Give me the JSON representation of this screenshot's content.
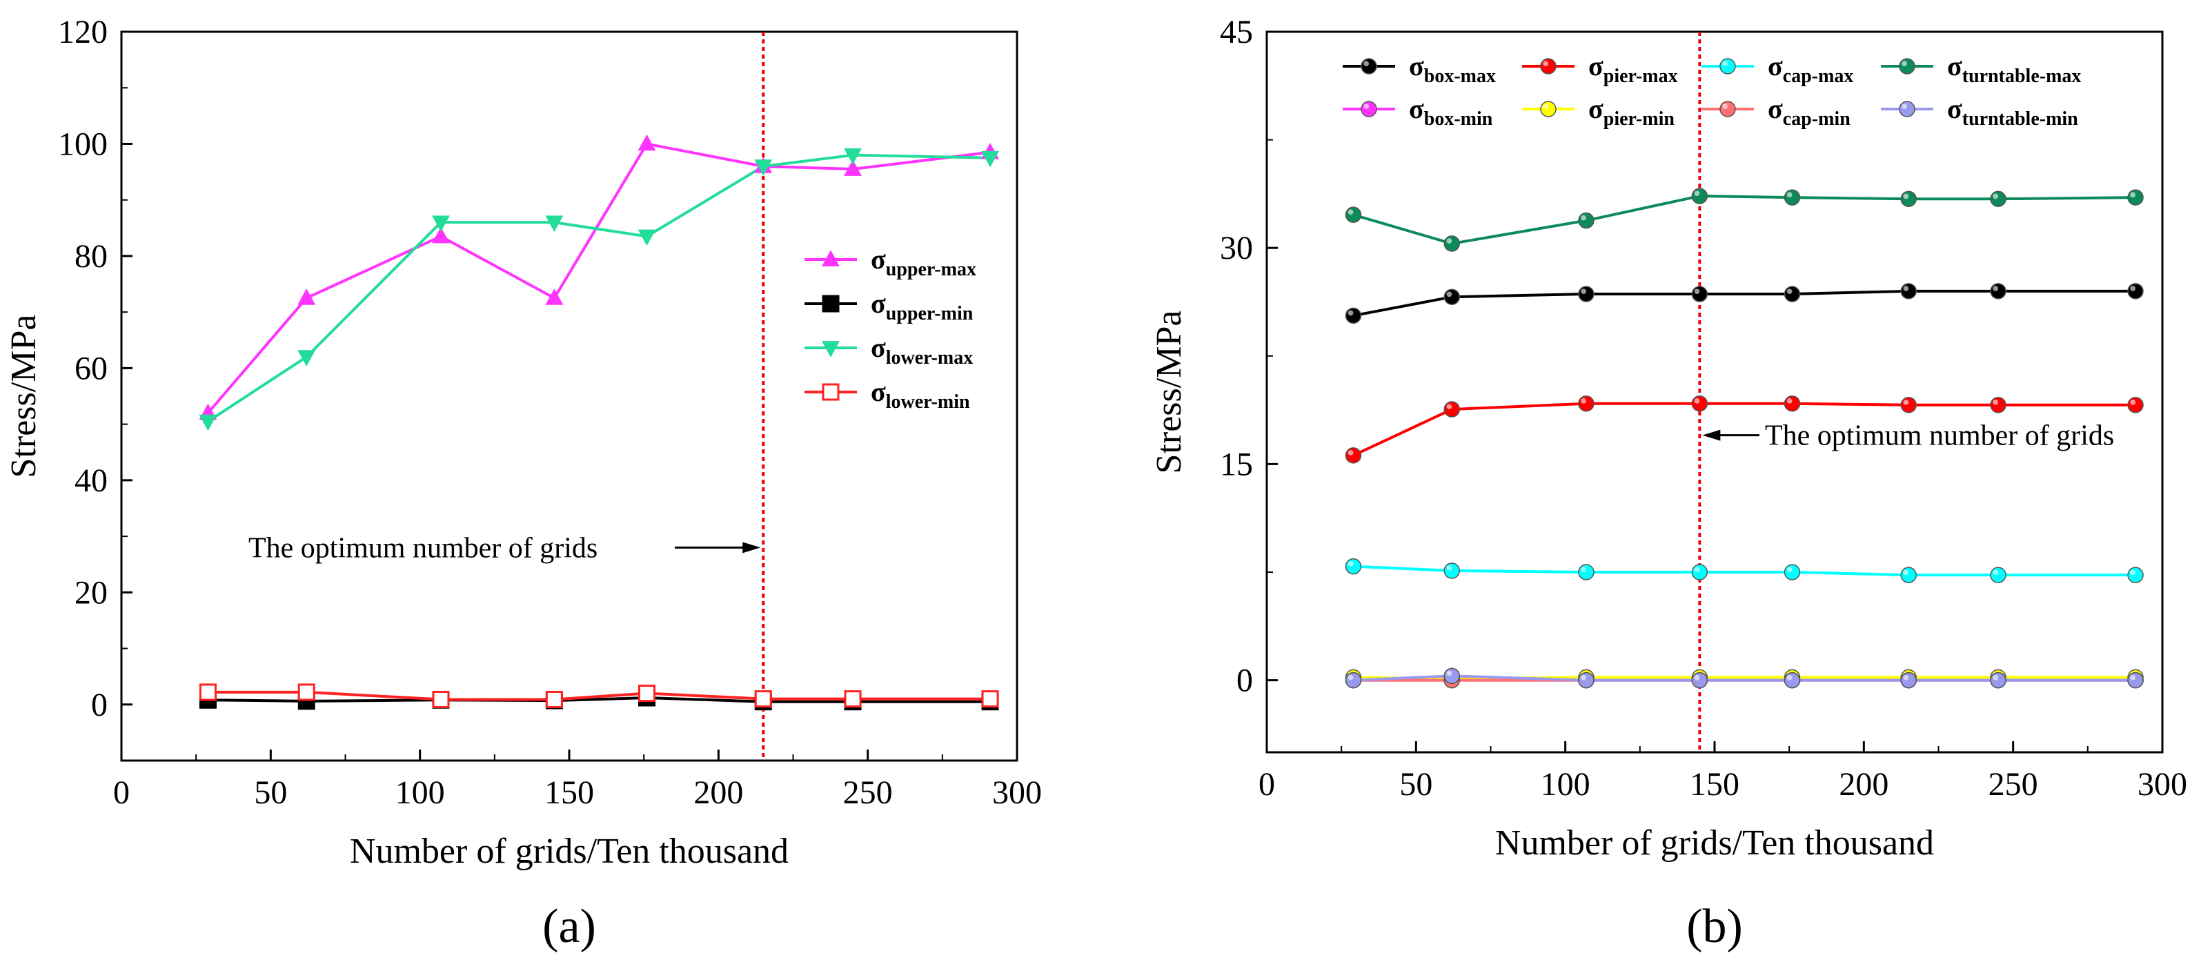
{
  "chart_data": [
    {
      "type": "line",
      "panel_label": "(a)",
      "xlabel": "Number of grids/Ten thousand",
      "ylabel": "Stress/MPa",
      "xlim": [
        0,
        300
      ],
      "ylim": [
        -10,
        120
      ],
      "xticks": [
        0,
        50,
        100,
        150,
        200,
        250,
        300
      ],
      "yticks": [
        0,
        20,
        40,
        60,
        80,
        100,
        120
      ],
      "grid": false,
      "legend_position": "right",
      "annotation": {
        "text": "The optimum number of grids",
        "line_x": 215
      },
      "x": [
        29,
        62,
        107,
        145,
        176,
        215,
        245,
        291
      ],
      "series": [
        {
          "name": "σupper-max",
          "name_main": "σ",
          "name_sub": "upper-max",
          "color": "#ff33ff",
          "marker": "triangle-up",
          "filled": true,
          "values": [
            52,
            72.5,
            83.5,
            72.5,
            100,
            96,
            95.5,
            98.5
          ]
        },
        {
          "name": "σupper-min",
          "name_main": "σ",
          "name_sub": "upper-min",
          "color": "#000000",
          "marker": "square",
          "filled": true,
          "values": [
            0.8,
            0.6,
            0.8,
            0.7,
            1.2,
            0.5,
            0.5,
            0.5
          ]
        },
        {
          "name": "σlower-max",
          "name_main": "σ",
          "name_sub": "lower-max",
          "color": "#22dd99",
          "marker": "triangle-down",
          "filled": true,
          "values": [
            50.5,
            62,
            86,
            86,
            83.5,
            96,
            98,
            97.5
          ]
        },
        {
          "name": "σlower-min",
          "name_main": "σ",
          "name_sub": "lower-min",
          "color": "#ff2222",
          "marker": "square",
          "filled": false,
          "values": [
            2.2,
            2.2,
            0.9,
            0.9,
            2.0,
            1.0,
            1.0,
            1.0
          ]
        }
      ]
    },
    {
      "type": "line",
      "panel_label": "(b)",
      "xlabel": "Number of grids/Ten thousand",
      "ylabel": "Stress/MPa",
      "xlim": [
        0,
        300
      ],
      "ylim": [
        -5,
        45
      ],
      "xticks": [
        0,
        50,
        100,
        150,
        200,
        250,
        300
      ],
      "yticks": [
        0,
        15,
        30,
        45
      ],
      "grid": false,
      "legend_position": "top",
      "annotation": {
        "text": "The optimum number of grids",
        "line_x": 145
      },
      "x": [
        29,
        62,
        107,
        145,
        176,
        215,
        245,
        291
      ],
      "series": [
        {
          "name": "σbox-max",
          "name_main": "σ",
          "name_sub": "box-max",
          "color": "#000000",
          "marker": "circle",
          "values": [
            25.3,
            26.6,
            26.8,
            26.8,
            26.8,
            27.0,
            27.0,
            27.0
          ]
        },
        {
          "name": "σpier-max",
          "name_main": "σ",
          "name_sub": "pier-max",
          "color": "#ff0000",
          "marker": "circle",
          "values": [
            15.6,
            18.8,
            19.2,
            19.2,
            19.2,
            19.1,
            19.1,
            19.1
          ]
        },
        {
          "name": "σcap-max",
          "name_main": "σ",
          "name_sub": "cap-max",
          "color": "#00ffff",
          "marker": "circle",
          "values": [
            7.9,
            7.6,
            7.5,
            7.5,
            7.5,
            7.3,
            7.3,
            7.3
          ]
        },
        {
          "name": "σturntable-max",
          "name_main": "σ",
          "name_sub": "turntable-max",
          "color": "#0d8a5a",
          "marker": "circle",
          "values": [
            32.3,
            30.3,
            31.9,
            33.6,
            33.5,
            33.4,
            33.4,
            33.5
          ]
        },
        {
          "name": "σbox-min",
          "name_main": "σ",
          "name_sub": "box-min",
          "color": "#ff33ff",
          "marker": "circle",
          "values": [
            0.0,
            0.0,
            0.0,
            0.0,
            0.0,
            0.0,
            0.0,
            0.0
          ]
        },
        {
          "name": "σpier-min",
          "name_main": "σ",
          "name_sub": "pier-min",
          "color": "#ffff00",
          "marker": "circle",
          "values": [
            0.2,
            0.1,
            0.2,
            0.2,
            0.2,
            0.2,
            0.2,
            0.2
          ]
        },
        {
          "name": "σcap-min",
          "name_main": "σ",
          "name_sub": "cap-min",
          "color": "#ff7070",
          "marker": "circle",
          "values": [
            0.0,
            0.0,
            0.0,
            0.0,
            0.0,
            0.0,
            0.0,
            0.0
          ]
        },
        {
          "name": "σturntable-min",
          "name_main": "σ",
          "name_sub": "turntable-min",
          "color": "#9999ee",
          "marker": "circle",
          "values": [
            0.0,
            0.3,
            0.0,
            0.0,
            0.0,
            0.0,
            0.0,
            0.0
          ]
        }
      ]
    }
  ]
}
